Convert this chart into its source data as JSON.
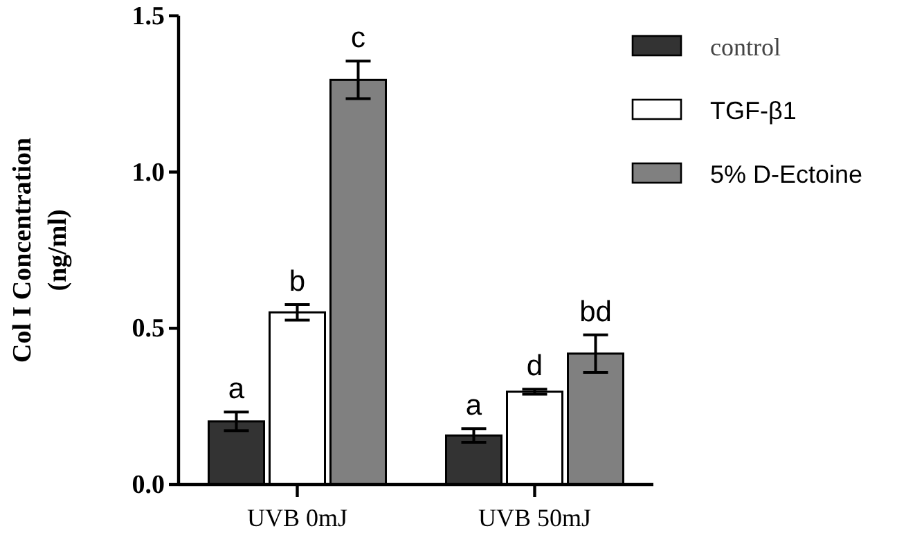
{
  "chart_data": {
    "type": "bar",
    "ylabel": "Col I Concentration\n(ng/ml)",
    "categories": [
      "UVB 0mJ",
      "UVB 50mJ"
    ],
    "series": [
      {
        "name": "control",
        "color": "#333333",
        "values": [
          0.202,
          0.157
        ],
        "errors": [
          0.03,
          0.022
        ],
        "value_labels": [
          "a",
          "a"
        ]
      },
      {
        "name": "TGF-β1",
        "color": "#ffffff",
        "values": [
          0.551,
          0.297
        ],
        "errors": [
          0.025,
          0.008
        ],
        "value_labels": [
          "b",
          "d"
        ]
      },
      {
        "name": "5% D-Ectoine",
        "color": "#808080",
        "values": [
          1.295,
          0.419
        ],
        "errors": [
          0.06,
          0.06
        ],
        "value_labels": [
          "c",
          "bd"
        ]
      }
    ],
    "ylim": [
      0,
      1.5
    ],
    "yticks": [
      {
        "value": 0,
        "label": "0.0"
      },
      0.5,
      {
        "value": 1,
        "label": "1.0"
      },
      1.5
    ],
    "legend": "top right"
  }
}
